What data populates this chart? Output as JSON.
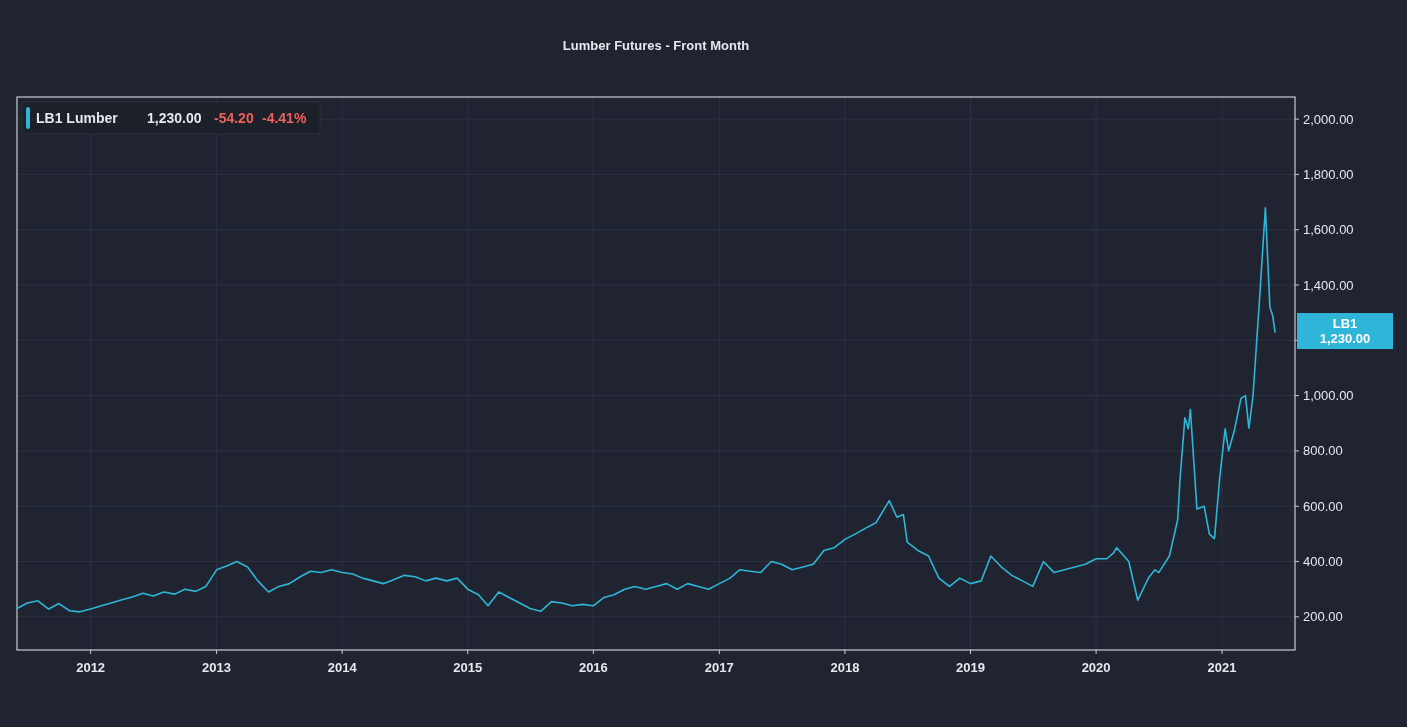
{
  "chart_data": {
    "type": "line",
    "title": "Lumber Futures - Front Month",
    "x": [
      "2011-06",
      "2011-07",
      "2011-08",
      "2011-09",
      "2011-10",
      "2011-11",
      "2011-12",
      "2012-01",
      "2012-02",
      "2012-03",
      "2012-04",
      "2012-05",
      "2012-06",
      "2012-07",
      "2012-08",
      "2012-09",
      "2012-10",
      "2012-11",
      "2012-12",
      "2013-01",
      "2013-02",
      "2013-03",
      "2013-04",
      "2013-05",
      "2013-06",
      "2013-07",
      "2013-08",
      "2013-09",
      "2013-10",
      "2013-11",
      "2013-12",
      "2014-01",
      "2014-02",
      "2014-03",
      "2014-04",
      "2014-05",
      "2014-06",
      "2014-07",
      "2014-08",
      "2014-09",
      "2014-10",
      "2014-11",
      "2014-12",
      "2015-01",
      "2015-02",
      "2015-03",
      "2015-04",
      "2015-05",
      "2015-06",
      "2015-07",
      "2015-08",
      "2015-09",
      "2015-10",
      "2015-11",
      "2015-12",
      "2016-01",
      "2016-02",
      "2016-03",
      "2016-04",
      "2016-05",
      "2016-06",
      "2016-07",
      "2016-08",
      "2016-09",
      "2016-10",
      "2016-11",
      "2016-12",
      "2017-01",
      "2017-02",
      "2017-03",
      "2017-04",
      "2017-05",
      "2017-06",
      "2017-07",
      "2017-08",
      "2017-09",
      "2017-10",
      "2017-11",
      "2017-12",
      "2018-01",
      "2018-02",
      "2018-03",
      "2018-04",
      "2018-05-10",
      "2018-06",
      "2018-06-20",
      "2018-07",
      "2018-08",
      "2018-09",
      "2018-10",
      "2018-11",
      "2018-12",
      "2019-01",
      "2019-02",
      "2019-03",
      "2019-04",
      "2019-05",
      "2019-06",
      "2019-07",
      "2019-08",
      "2019-09",
      "2019-10",
      "2019-11",
      "2019-12",
      "2020-01",
      "2020-02",
      "2020-02-20",
      "2020-03",
      "2020-04-05",
      "2020-05",
      "2020-06",
      "2020-06-20",
      "2020-07",
      "2020-08",
      "2020-08-25",
      "2020-09-01",
      "2020-09-15",
      "2020-09-25",
      "2020-10",
      "2020-10-20",
      "2020-11-10",
      "2020-11-25",
      "2020-12-10",
      "2020-12-25",
      "2021-01-10",
      "2021-01-20",
      "2021-02-05",
      "2021-02-25",
      "2021-03-10",
      "2021-03-20",
      "2021-04-01",
      "2021-04-20",
      "2021-05-07",
      "2021-05-20",
      "2021-05-28",
      "2021-06-04"
    ],
    "series": [
      {
        "name": "LB1 Lumber",
        "color": "#2fb5d8",
        "values": [
          230,
          250,
          258,
          228,
          248,
          222,
          218,
          228,
          240,
          250,
          262,
          272,
          285,
          275,
          290,
          282,
          300,
          292,
          310,
          370,
          385,
          400,
          380,
          330,
          290,
          310,
          320,
          345,
          365,
          360,
          370,
          360,
          355,
          340,
          330,
          320,
          335,
          350,
          345,
          330,
          340,
          330,
          340,
          300,
          280,
          240,
          290,
          270,
          250,
          230,
          220,
          255,
          250,
          240,
          245,
          240,
          270,
          280,
          300,
          310,
          300,
          310,
          320,
          300,
          320,
          310,
          300,
          320,
          340,
          370,
          365,
          360,
          400,
          390,
          370,
          380,
          390,
          440,
          450,
          480,
          500,
          520,
          540,
          620,
          560,
          570,
          470,
          440,
          420,
          340,
          310,
          340,
          320,
          330,
          420,
          380,
          350,
          330,
          310,
          400,
          360,
          370,
          380,
          390,
          410,
          410,
          430,
          450,
          400,
          260,
          340,
          370,
          360,
          420,
          550,
          700,
          920,
          880,
          950,
          590,
          600,
          500,
          483,
          700,
          880,
          800,
          870,
          990,
          1000,
          882,
          1000,
          1350,
          1679,
          1320,
          1290,
          1230
        ]
      }
    ],
    "xlim": [
      "2011-06",
      "2021-08"
    ],
    "xticks": [
      {
        "value": "2012",
        "label": "2012"
      },
      {
        "value": "2013",
        "label": "2013"
      },
      {
        "value": "2014",
        "label": "2014"
      },
      {
        "value": "2015",
        "label": "2015"
      },
      {
        "value": "2016",
        "label": "2016"
      },
      {
        "value": "2017",
        "label": "2017"
      },
      {
        "value": "2018",
        "label": "2018"
      },
      {
        "value": "2019",
        "label": "2019"
      },
      {
        "value": "2020",
        "label": "2020"
      },
      {
        "value": "2021",
        "label": "2021"
      }
    ],
    "ylim": [
      80,
      2080
    ],
    "yticks": [
      {
        "value": 200,
        "label": "200.00"
      },
      {
        "value": 400,
        "label": "400.00"
      },
      {
        "value": 600,
        "label": "600.00"
      },
      {
        "value": 800,
        "label": "800.00"
      },
      {
        "value": 1000,
        "label": "1,000.00"
      },
      {
        "value": 1200,
        "label": null
      },
      {
        "value": 1400,
        "label": "1,400.00"
      },
      {
        "value": 1600,
        "label": "1,600.00"
      },
      {
        "value": 1800,
        "label": "1,800.00"
      },
      {
        "value": 2000,
        "label": "2,000.00"
      }
    ],
    "grid": true,
    "legend": "top left",
    "annotations": [
      "1,230.00",
      "-54.20",
      "-4.41%",
      "LB1 1,230.00"
    ]
  }
}
